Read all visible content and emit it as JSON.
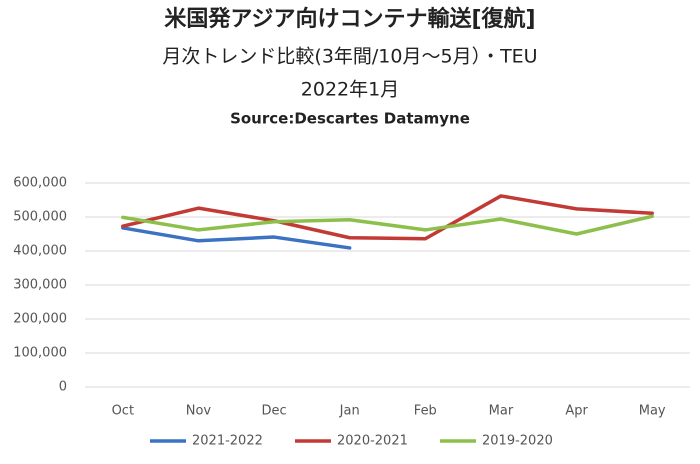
{
  "chart_data": {
    "type": "line",
    "title": "米国発アジア向けコンテナ輸送[復航]",
    "subtitle_lines": [
      "月次トレンド比較(3年間/10月～5月）・TEU",
      "2022年1月",
      "Source:Descartes Datamyne"
    ],
    "categories": [
      "Oct",
      "Nov",
      "Dec",
      "Jan",
      "Feb",
      "Mar",
      "Apr",
      "May"
    ],
    "series": [
      {
        "name": "2021-2022",
        "color": "#3b73c2",
        "values": [
          468000,
          430000,
          441000,
          409000,
          null,
          null,
          null,
          null
        ]
      },
      {
        "name": "2020-2021",
        "color": "#c23a35",
        "values": [
          473000,
          526000,
          489000,
          439000,
          436000,
          562000,
          524000,
          511000
        ]
      },
      {
        "name": "2019-2020",
        "color": "#8cc04b",
        "values": [
          499000,
          462000,
          486000,
          492000,
          462000,
          494000,
          450000,
          502000
        ]
      }
    ],
    "ylim": [
      0,
      600000
    ],
    "yticks": [
      0,
      {
        "value": 100000,
        "label": "100,000"
      },
      {
        "value": 200000,
        "label": "200,000"
      },
      {
        "value": 300000,
        "label": "300,000"
      },
      {
        "value": 400000,
        "label": "400,000"
      },
      {
        "value": 500000,
        "label": "500,000"
      },
      {
        "value": 600000,
        "label": "600,000"
      }
    ],
    "grid": true,
    "legend": "bottom"
  }
}
